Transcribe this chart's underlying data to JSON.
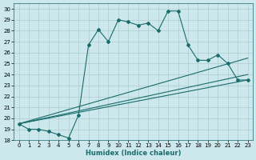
{
  "title": "",
  "xlabel": "Humidex (Indice chaleur)",
  "background_color": "#cce8ec",
  "grid_color": "#aacccc",
  "line_color": "#1a6b6b",
  "xlim": [
    -0.5,
    23.5
  ],
  "ylim": [
    18.0,
    30.5
  ],
  "xticks": [
    0,
    1,
    2,
    3,
    4,
    5,
    6,
    7,
    8,
    9,
    10,
    11,
    12,
    13,
    14,
    15,
    16,
    17,
    18,
    19,
    20,
    21,
    22,
    23
  ],
  "yticks": [
    18,
    19,
    20,
    21,
    22,
    23,
    24,
    25,
    26,
    27,
    28,
    29,
    30
  ],
  "main_series": {
    "x": [
      0,
      1,
      2,
      3,
      4,
      5,
      6,
      7,
      8,
      9,
      10,
      11,
      12,
      13,
      14,
      15,
      16,
      17,
      18,
      19,
      20,
      21,
      22,
      23
    ],
    "y": [
      19.5,
      19.0,
      19.0,
      18.8,
      18.5,
      18.2,
      20.3,
      26.7,
      28.1,
      27.0,
      29.0,
      28.8,
      28.5,
      28.7,
      28.0,
      29.8,
      29.8,
      26.7,
      25.3,
      25.3,
      25.8,
      25.0,
      23.5,
      23.5
    ]
  },
  "fan_lines": [
    {
      "x": [
        0,
        23
      ],
      "y": [
        19.5,
        23.5
      ]
    },
    {
      "x": [
        0,
        23
      ],
      "y": [
        19.5,
        24.0
      ]
    },
    {
      "x": [
        0,
        23
      ],
      "y": [
        19.5,
        25.5
      ]
    }
  ]
}
